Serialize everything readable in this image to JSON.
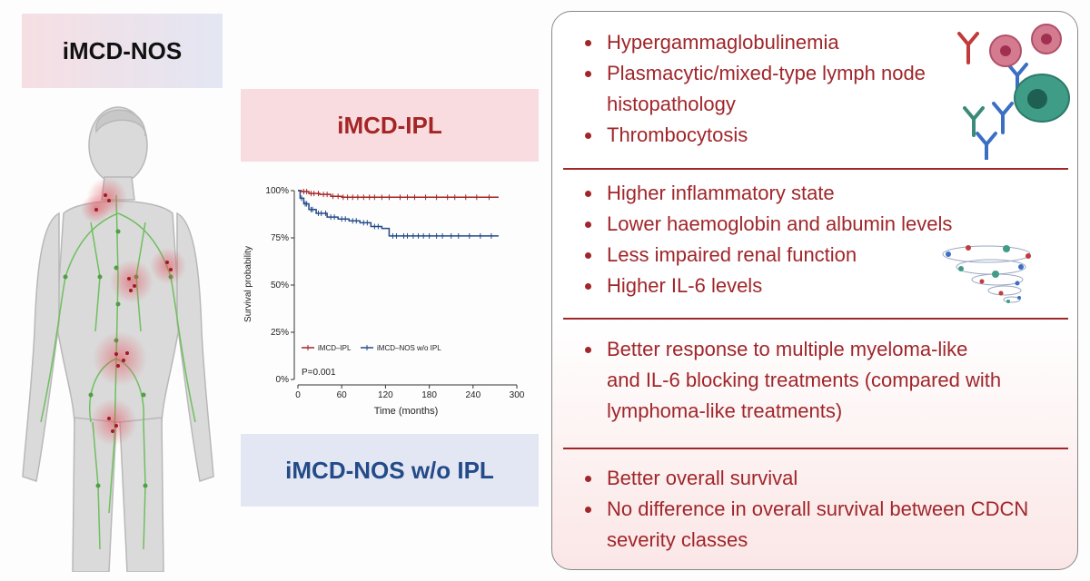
{
  "labels": {
    "nos": "iMCD-NOS",
    "ipl": "iMCD-IPL",
    "nos_wo_ipl": "iMCD-NOS w/o IPL"
  },
  "colors": {
    "ipl_red": "#a52525",
    "nos_blue": "#244a88",
    "bullet_red": "#a0262a"
  },
  "sections": [
    {
      "items": [
        "Hypergammaglobulinemia",
        "Plasmacytic/mixed-type lymph node histopathology",
        "Thrombocytosis"
      ],
      "icon": "antibodies-and-cells-icon"
    },
    {
      "items": [
        "Higher inflammatory state",
        "Lower haemoglobin and albumin levels",
        "Less impaired renal function",
        "Higher IL-6 levels"
      ],
      "icon": "cytokine-storm-icon"
    },
    {
      "items": [
        "Better response to multiple myeloma-like and IL-6 blocking treatments (compared with lymphoma-like treatments)"
      ]
    },
    {
      "items": [
        "Better overall survival",
        "No difference in overall survival between CDCN severity classes"
      ]
    }
  ],
  "illustration": {
    "icon": "body-lymph-nodes-icon"
  },
  "chart_data": {
    "type": "line",
    "xlabel": "Time (months)",
    "ylabel": "Survival probability",
    "xlim": [
      0,
      300
    ],
    "ylim": [
      0,
      100
    ],
    "x_ticks": [
      0,
      60,
      120,
      180,
      240,
      300
    ],
    "y_ticks": [
      "0%",
      "25%",
      "50%",
      "75%",
      "100%"
    ],
    "y_tick_values": [
      0,
      25,
      50,
      75,
      100
    ],
    "annotation": "P=0.001",
    "legend_placement": "bottom-left",
    "series": [
      {
        "name": "iMCD–IPL",
        "color": "#a52525",
        "points": [
          [
            0,
            100
          ],
          [
            5,
            99.5
          ],
          [
            15,
            98.5
          ],
          [
            30,
            98
          ],
          [
            45,
            97
          ],
          [
            60,
            96.5
          ],
          [
            90,
            96.5
          ],
          [
            120,
            96.5
          ],
          [
            180,
            96.5
          ],
          [
            240,
            96.5
          ],
          [
            275,
            96.5
          ]
        ],
        "censors": [
          8,
          12,
          18,
          22,
          28,
          35,
          40,
          48,
          55,
          62,
          68,
          75,
          82,
          90,
          98,
          105,
          115,
          125,
          140,
          150,
          160,
          175,
          190,
          205,
          215,
          230,
          245,
          262
        ]
      },
      {
        "name": "iMCD–NOS w/o IPL",
        "color": "#244a88",
        "points": [
          [
            0,
            100
          ],
          [
            3,
            96
          ],
          [
            8,
            93
          ],
          [
            15,
            90
          ],
          [
            25,
            88
          ],
          [
            40,
            86
          ],
          [
            55,
            85
          ],
          [
            70,
            84
          ],
          [
            85,
            83
          ],
          [
            100,
            81
          ],
          [
            115,
            80
          ],
          [
            125,
            76
          ],
          [
            140,
            76
          ],
          [
            200,
            76
          ],
          [
            275,
            76
          ]
        ],
        "censors": [
          5,
          10,
          12,
          18,
          20,
          28,
          32,
          38,
          45,
          50,
          60,
          65,
          75,
          80,
          90,
          95,
          105,
          110,
          130,
          135,
          145,
          150,
          158,
          165,
          172,
          180,
          190,
          198,
          210,
          220,
          235,
          250,
          265
        ]
      }
    ]
  }
}
